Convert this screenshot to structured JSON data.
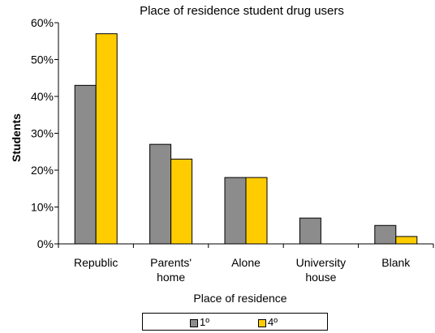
{
  "chart_data": {
    "type": "bar",
    "title": "Place of residence student drug users",
    "xlabel": "Place of residence",
    "ylabel": "Students",
    "categories": [
      [
        "Republic"
      ],
      [
        "Parents'",
        "home"
      ],
      [
        "Alone"
      ],
      [
        "University",
        "house"
      ],
      [
        "Blank"
      ]
    ],
    "series": [
      {
        "name": "1º",
        "color": "#8c8c8c",
        "values": [
          43,
          27,
          18,
          7,
          5
        ]
      },
      {
        "name": "4º",
        "color": "#ffcc00",
        "values": [
          57,
          23,
          18,
          0,
          2
        ]
      }
    ],
    "ylim": [
      0,
      60
    ],
    "yticks": [
      0,
      10,
      20,
      30,
      40,
      50,
      60
    ],
    "ytick_format": "percent",
    "grid": false,
    "legend_position": "bottom"
  }
}
